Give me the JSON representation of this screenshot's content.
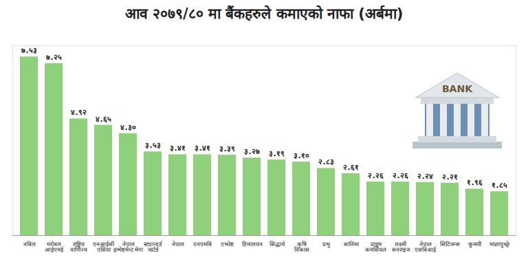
{
  "chart_data": {
    "type": "bar",
    "title": "आव २०७९/८० मा बैंकहरुले कमाएको नाफा (अर्बमा)",
    "categories": [
      "नबिल",
      "ग्लोबल आईएमई",
      "राष्ट्रिय वाणिज्य",
      "एनआईसी एसिया",
      "नेपाल इन्भेष्टमेन्ट मेगा",
      "स्ट्यान्डर्ड चार्टर्ड",
      "नेपाल",
      "एनएमबि",
      "एभरेष्ट",
      "हिमालयन",
      "सिद्धार्थ",
      "कृषि विकास",
      "प्रभु",
      "सानिमा",
      "प्राइम कमर्सियल",
      "लक्ष्मी सनराइज",
      "नेपाल एसबिआई",
      "सिटिजन्स",
      "कुमारी",
      "माछापुच्छ्रे"
    ],
    "values": [
      7.53,
      7.25,
      4.92,
      4.65,
      4.3,
      3.53,
      3.41,
      3.41,
      3.39,
      3.27,
      3.19,
      3.1,
      2.83,
      2.61,
      2.26,
      2.26,
      2.24,
      2.21,
      1.96,
      1.85
    ],
    "value_labels": [
      "७.५३",
      "७.२५",
      "४.९२",
      "४.६५",
      "४.३०",
      "३.५३",
      "३.४१",
      "३.४१",
      "३.३९",
      "३.२७",
      "३.१९",
      "३.१०",
      "२.८३",
      "२.६१",
      "२.२६",
      "२.२६",
      "२.२४",
      "२.२१",
      "१.९६",
      "१.८५"
    ],
    "color": "#8fd17a",
    "ylim": [
      0,
      8
    ],
    "data_labels": true,
    "tick_labels": "x",
    "grid": false,
    "annotations": [
      "BANK"
    ]
  }
}
